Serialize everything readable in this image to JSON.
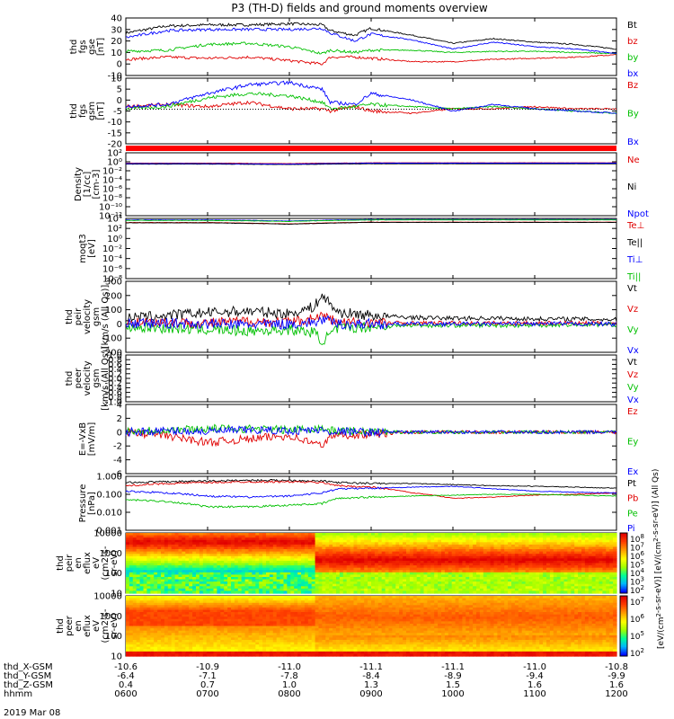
{
  "title": "P3 (TH-D) fields and ground moments overview",
  "footer_date": "2019 Mar 08",
  "time_axis": {
    "start_hour": 6.0,
    "end_hour": 12.0,
    "tick_hours": [
      6,
      7,
      8,
      9,
      10,
      11,
      12
    ],
    "rows": [
      {
        "label": "thd_X-GSM",
        "values": [
          "-10.6",
          "-10.9",
          "-11.0",
          "-11.1",
          "-11.1",
          "-11.0",
          "-10.8"
        ]
      },
      {
        "label": "thd_Y-GSM",
        "values": [
          "-6.4",
          "-7.1",
          "-7.8",
          "-8.4",
          "-8.9",
          "-9.4",
          "-9.9"
        ]
      },
      {
        "label": "thd_Z-GSM",
        "values": [
          "0.4",
          "0.7",
          "1.0",
          "1.3",
          "1.5",
          "1.6",
          "1.6"
        ]
      },
      {
        "label": "hhmm",
        "values": [
          "0600",
          "0700",
          "0800",
          "0900",
          "1000",
          "1100",
          "1200"
        ]
      }
    ]
  },
  "colorbar": {
    "colors": [
      "#ffffff",
      "#7a00a0",
      "#0000ff",
      "#00c8ff",
      "#00ff80",
      "#ffff00",
      "#ff8000",
      "#ff0000"
    ],
    "ion_ticks": [
      "10",
      "10",
      "10",
      "10",
      "10",
      "10",
      "10"
    ],
    "ion_exps": [
      "8",
      "7",
      "6",
      "5",
      "4",
      "3",
      "2"
    ],
    "electron_ticks": [
      "10",
      "10",
      "10",
      "10"
    ],
    "electron_exps": [
      "7",
      "6",
      "5",
      "2"
    ],
    "label_pre": "[eV/(cm",
    "label_e1": "2",
    "label_mid": "-s-sr-eV)] [eV/(cm",
    "label_e2": "2",
    "label_post": "-s-sr-eV)] (All Qs)"
  },
  "chart_data": [
    {
      "type": "line",
      "ylabel": [
        "thd",
        "fgs",
        "gse",
        "[nT]"
      ],
      "ylim": [
        -10,
        40
      ],
      "yticks": [
        "40",
        "30",
        "20",
        "10",
        "0",
        "-10"
      ],
      "x": [
        6.0,
        6.5,
        7.0,
        7.5,
        8.0,
        8.4,
        8.5,
        8.8,
        9.0,
        9.5,
        10.0,
        10.5,
        11.0,
        11.5,
        12.0
      ],
      "series": [
        {
          "name": "Bt",
          "color": "#000000",
          "values": [
            27,
            33,
            34,
            34,
            35,
            34,
            29,
            25,
            31,
            25,
            18,
            22,
            19,
            17,
            13
          ]
        },
        {
          "name": "bz",
          "color": "#e00000",
          "values": [
            4,
            6,
            5,
            6,
            3,
            0,
            6,
            6,
            5,
            2,
            2,
            4,
            5,
            6,
            8
          ]
        },
        {
          "name": "by",
          "color": "#00c000",
          "values": [
            11,
            12,
            17,
            18,
            15,
            9,
            12,
            10,
            12,
            12,
            10,
            11,
            11,
            10,
            9
          ]
        },
        {
          "name": "bx",
          "color": "#0000ff",
          "values": [
            23,
            29,
            30,
            30,
            30,
            31,
            27,
            20,
            26,
            21,
            13,
            19,
            15,
            13,
            9
          ]
        }
      ],
      "legend": [
        "Bt",
        "bz",
        "by",
        "bx"
      ]
    },
    {
      "type": "line",
      "ylabel": [
        "thd",
        "fgs",
        "gsm",
        "[nT]"
      ],
      "ylim": [
        -20,
        10
      ],
      "yticks": [
        "10",
        "5",
        "0",
        "-5",
        "-10",
        "-15",
        "-20"
      ],
      "x": [
        6.0,
        6.5,
        7.0,
        7.5,
        8.0,
        8.4,
        8.5,
        8.8,
        9.0,
        9.5,
        10.0,
        10.5,
        11.0,
        11.5,
        12.0
      ],
      "series": [
        {
          "name": "Bz",
          "color": "#e00000",
          "values": [
            -3,
            -2,
            -3,
            -1,
            -4,
            -4,
            -5,
            -3,
            -5,
            -6,
            -4,
            -4,
            -3,
            -4,
            -4
          ]
        },
        {
          "name": "By",
          "color": "#00c000",
          "values": [
            -4,
            -3,
            1,
            3,
            2,
            -1,
            -4,
            -3,
            -2,
            -3,
            -4,
            -3,
            -4,
            -5,
            -6
          ]
        },
        {
          "name": "Bx",
          "color": "#0000ff",
          "values": [
            -3,
            -2,
            3,
            7,
            8,
            5,
            -1,
            -2,
            3,
            0,
            -5,
            -2,
            -4,
            -5,
            -6
          ]
        }
      ],
      "legend": [
        "Bz",
        "By",
        "Bx"
      ]
    },
    {
      "type": "line",
      "ylabel": [
        "Density",
        "[1/cc]",
        "[cm-3]"
      ],
      "scale": "log",
      "yticks": [
        "10²",
        "10⁰",
        "10⁻²",
        "10⁻⁴",
        "10⁻⁶",
        "10⁻⁸",
        "10⁻¹⁰",
        "10⁻¹²"
      ],
      "x": [
        6,
        7,
        8,
        9,
        10,
        11,
        12
      ],
      "series": [
        {
          "name": "Ne",
          "color": "#e00000",
          "values": [
            0.5,
            0.5,
            0.4,
            0.6,
            0.6,
            0.6,
            0.6
          ]
        },
        {
          "name": "Ni",
          "color": "#000000",
          "values": [
            0.3,
            0.3,
            0.25,
            0.35,
            0.35,
            0.35,
            0.35
          ]
        },
        {
          "name": "Npot",
          "color": "#0000ff",
          "values": [
            0.4,
            0.4,
            0.3,
            0.5,
            0.5,
            0.5,
            0.5
          ]
        }
      ],
      "legend": [
        "Ne",
        "Ni",
        "Npot"
      ]
    },
    {
      "type": "line",
      "ylabel": [
        "moqt3",
        "[eV]"
      ],
      "scale": "log",
      "yticks": [
        "10⁴",
        "10²",
        "10⁰",
        "10⁻²",
        "10⁻⁴",
        "10⁻⁶",
        "10⁻⁸"
      ],
      "x": [
        6,
        7,
        8,
        9,
        10,
        11,
        12
      ],
      "series": [
        {
          "name": "Te⊥",
          "color": "#e00000",
          "values": [
            1500,
            1500,
            800,
            1800,
            1800,
            1800,
            1800
          ]
        },
        {
          "name": "Te||",
          "color": "#000000",
          "values": [
            1300,
            1300,
            700,
            1600,
            1600,
            1600,
            1600
          ]
        },
        {
          "name": "Ti⊥",
          "color": "#0000ff",
          "values": [
            5000,
            5000,
            3000,
            6000,
            6000,
            6000,
            6000
          ]
        },
        {
          "name": "Ti||",
          "color": "#00c000",
          "values": [
            4000,
            4000,
            2500,
            5000,
            5000,
            5000,
            5000
          ]
        }
      ],
      "legend": [
        "Te⊥",
        "Te||",
        "Ti⊥",
        "Ti||"
      ]
    },
    {
      "type": "line",
      "ylabel": [
        "thd",
        "peir",
        "velocity",
        "gsm",
        "[km/s (All Qs)]"
      ],
      "ylim": [
        -200,
        300
      ],
      "yticks": [
        "300",
        "200",
        "100",
        "0",
        "-100",
        "-200"
      ],
      "x": [
        6.0,
        6.5,
        7.0,
        7.5,
        8.0,
        8.3,
        8.4,
        8.6,
        9.0,
        9.5,
        10.0,
        10.5,
        11.0,
        11.5,
        12.0
      ],
      "series": [
        {
          "name": "Vt",
          "color": "#000000",
          "values": [
            40,
            60,
            80,
            90,
            70,
            120,
            200,
            80,
            60,
            45,
            40,
            40,
            35,
            35,
            30
          ]
        },
        {
          "name": "Vz",
          "color": "#e00000",
          "values": [
            10,
            15,
            5,
            20,
            10,
            40,
            60,
            10,
            10,
            5,
            5,
            5,
            5,
            5,
            5
          ]
        },
        {
          "name": "Vy",
          "color": "#00c000",
          "values": [
            -20,
            -30,
            -40,
            -50,
            -40,
            -60,
            -120,
            -30,
            -20,
            -10,
            -10,
            -10,
            -10,
            -5,
            -5
          ]
        },
        {
          "name": "Vx",
          "color": "#0000ff",
          "values": [
            0,
            5,
            0,
            -5,
            0,
            10,
            30,
            0,
            0,
            0,
            0,
            0,
            0,
            0,
            0
          ]
        }
      ],
      "legend": [
        "Vt",
        "Vz",
        "Vy",
        "Vx"
      ]
    },
    {
      "type": "line",
      "ylabel": [
        "thd",
        "peer",
        "velocity",
        "gsm",
        "[km/s (All Qs)]"
      ],
      "ylim": [
        -1,
        1
      ],
      "yticks": [
        "1.0",
        "0.8",
        "0.6",
        "0.4",
        "0.2",
        "0.0",
        "-0.2",
        "-0.4",
        "-0.6",
        "-0.8",
        "-1.0"
      ],
      "x": [],
      "series": [],
      "legend": [
        "Vt",
        "Vz",
        "Vy",
        "Vx"
      ]
    },
    {
      "type": "line",
      "ylabel": [
        "E=-VxB",
        "[mV/m]"
      ],
      "ylim": [
        -6,
        4
      ],
      "yticks": [
        "4",
        "2",
        "0",
        "-2",
        "-4",
        "-6"
      ],
      "x": [
        6.0,
        6.5,
        7.0,
        7.5,
        8.0,
        8.4,
        8.5,
        9.0,
        9.5,
        10.0,
        10.5,
        11.0,
        11.5,
        12.0
      ],
      "series": [
        {
          "name": "Ez",
          "color": "#e00000",
          "values": [
            0,
            -0.5,
            -1.5,
            -1,
            -0.5,
            -2,
            -0.5,
            -0.3,
            0,
            0,
            0,
            0,
            0,
            0
          ]
        },
        {
          "name": "Ey",
          "color": "#00c000",
          "values": [
            0.2,
            0.3,
            0.5,
            0.5,
            0.3,
            0.6,
            0.2,
            0.1,
            0,
            0,
            0,
            0,
            0,
            0
          ]
        },
        {
          "name": "Ex",
          "color": "#0000ff",
          "values": [
            0,
            0.2,
            0.1,
            0.3,
            0.2,
            0.3,
            0.1,
            0,
            0,
            0,
            0,
            0,
            0,
            0
          ]
        }
      ],
      "legend": [
        "Ez",
        "Ey",
        "Ex"
      ]
    },
    {
      "type": "line",
      "ylabel": [
        "Pressure",
        "[nPa]"
      ],
      "scale": "log",
      "yticks": [
        "1.000",
        "0.100",
        "0.010",
        "0.001"
      ],
      "x": [
        6.0,
        6.5,
        7.0,
        7.5,
        8.0,
        8.4,
        8.6,
        9.0,
        9.5,
        10.0,
        10.5,
        11.0,
        11.5,
        12.0
      ],
      "series": [
        {
          "name": "Pt",
          "color": "#000000",
          "values": [
            0.45,
            0.5,
            0.55,
            0.6,
            0.6,
            0.55,
            0.45,
            0.4,
            0.4,
            0.35,
            0.3,
            0.28,
            0.25,
            0.22
          ]
        },
        {
          "name": "Pb",
          "color": "#e00000",
          "values": [
            0.3,
            0.4,
            0.45,
            0.5,
            0.5,
            0.45,
            0.3,
            0.25,
            0.12,
            0.06,
            0.07,
            0.09,
            0.1,
            0.12
          ]
        },
        {
          "name": "Pe",
          "color": "#00c000",
          "values": [
            0.05,
            0.04,
            0.02,
            0.02,
            0.025,
            0.03,
            0.06,
            0.07,
            0.08,
            0.09,
            0.1,
            0.1,
            0.09,
            0.08
          ]
        },
        {
          "name": "Pi",
          "color": "#0000ff",
          "values": [
            0.15,
            0.12,
            0.08,
            0.07,
            0.08,
            0.12,
            0.2,
            0.22,
            0.25,
            0.28,
            0.2,
            0.15,
            0.13,
            0.12
          ]
        }
      ],
      "legend": [
        "Pt",
        "Pb",
        "Pe",
        "Pi"
      ]
    },
    {
      "type": "heatmap",
      "ylabel": [
        "thd",
        "peir",
        "en",
        "eflux",
        "eV",
        "(cm2-s-",
        "sr-eV)"
      ],
      "scale": "log",
      "yticks": [
        "10000",
        "1000",
        "100",
        "10"
      ],
      "description_levels_by_hour": [
        6,
        7,
        8,
        8.3,
        9,
        10,
        11,
        12
      ]
    },
    {
      "type": "heatmap",
      "ylabel": [
        "thd",
        "peer",
        "en",
        "eflux",
        "eV",
        "(cm2-s-",
        "sr-eV)"
      ],
      "scale": "log",
      "yticks": [
        "10000",
        "1000",
        "100",
        "10"
      ],
      "description_levels_by_hour": [
        6,
        7,
        8,
        8.3,
        9,
        10,
        11,
        12
      ]
    }
  ]
}
